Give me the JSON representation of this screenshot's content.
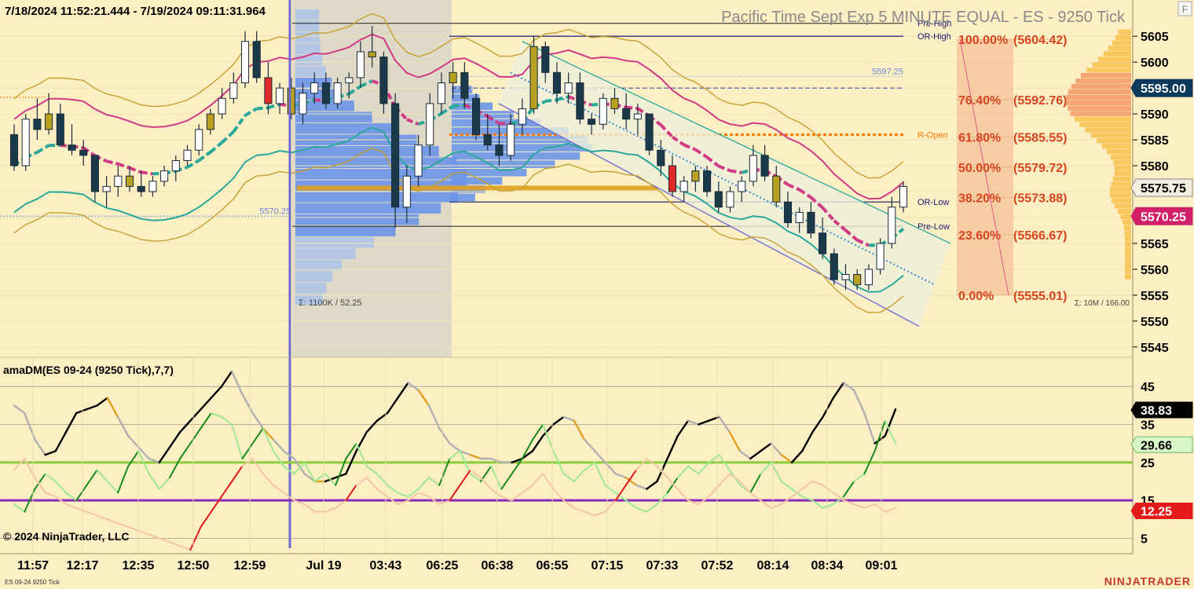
{
  "header": {
    "date_range": "7/18/2024 11:52:21.444 - 7/19/2024 09:11:31.964",
    "watermark": "Pacific Time Sept Exp 5 MINUTE EQUAL - ES - 9250 Tick",
    "corner_button": "F"
  },
  "footer": {
    "copyright": "© 2024 NinjaTrader, LLC",
    "instrument": "ES 09-24 9250 Tick",
    "brand": "NINJATRADER"
  },
  "colors": {
    "background": "#fcefc4",
    "bull_candle": "#ffffff",
    "bear_candle": "#1a3a4a",
    "neutral_candle": "#b8a020",
    "band_upper": "#d13a86",
    "band_mid": "#d13a86",
    "band_lower": "#2aa89a",
    "volume_profile": "#5b8ee6",
    "fib": "#d64520",
    "dm_black": "#000000",
    "dm_red": "#e21a1a",
    "dm_green": "#1a8a1a",
    "level_green": "#8ccc3a",
    "level_purple": "#8a2ab8"
  },
  "chart_data": [
    {
      "type": "candlestick",
      "title": "Pacific Time Sept Exp 5 MINUTE EQUAL - ES - 9250 Tick",
      "instrument": "ES 09-24 9250 Tick",
      "ylim": [
        5543,
        5612
      ],
      "y_ticks": [
        5545,
        5550,
        5555,
        5560,
        5565,
        5570,
        5575,
        5580,
        5585,
        5590,
        5595,
        5600,
        5605
      ],
      "x_ticks": [
        "11:57",
        "12:17",
        "12:35",
        "12:50",
        "12:59",
        "Jul 19",
        "03:43",
        "06:25",
        "06:38",
        "06:55",
        "07:15",
        "07:33",
        "07:52",
        "08:14",
        "08:34",
        "09:01"
      ],
      "price_labels": [
        {
          "value": 5595.0,
          "label": "5595.00",
          "style": "dark"
        },
        {
          "value": 5575.75,
          "label": "5575.75",
          "style": "light"
        },
        {
          "value": 5570.25,
          "label": "5570.25",
          "style": "pink"
        }
      ],
      "levels": [
        {
          "name": "Pre-High",
          "value": 5607.5
        },
        {
          "name": "OR-High",
          "value": 5605.0
        },
        {
          "name": "R-Open",
          "value": 5586.0
        },
        {
          "name": "OR-Low",
          "value": 5573.0
        },
        {
          "name": "Pre-Low",
          "value": 5568.3
        }
      ],
      "value_labels": [
        "5597.25",
        "5570.25"
      ],
      "fibonacci": [
        {
          "pct": "100.00%",
          "price": "(5604.42)",
          "value": 5604.42
        },
        {
          "pct": "76.40%",
          "price": "(5592.76)",
          "value": 5592.76
        },
        {
          "pct": "61.80%",
          "price": "(5585.55)",
          "value": 5585.55
        },
        {
          "pct": "50.00%",
          "price": "(5579.72)",
          "value": 5579.72
        },
        {
          "pct": "38.20%",
          "price": "(5573.88)",
          "value": 5573.88
        },
        {
          "pct": "23.60%",
          "price": "(5566.67)",
          "value": 5566.67
        },
        {
          "pct": "0.00%",
          "price": "(5555.01)",
          "value": 5555.01
        }
      ],
      "profile_stats": [
        "Σ: 1100K / 52.25",
        "Σ: 10M / 166.00"
      ],
      "candles": [
        [
          5586,
          5588,
          5579,
          5580
        ],
        [
          5580,
          5590,
          5579,
          5589
        ],
        [
          5589,
          5593,
          5585,
          5587
        ],
        [
          5587,
          5594,
          5586,
          5590
        ],
        [
          5590,
          5592,
          5584,
          5584
        ],
        [
          5584,
          5588,
          5582,
          5583
        ],
        [
          5583,
          5585,
          5580,
          5582
        ],
        [
          5582,
          5582,
          5573,
          5575
        ],
        [
          5575,
          5578,
          5572,
          5576
        ],
        [
          5576,
          5580,
          5574,
          5578
        ],
        [
          5578,
          5580,
          5575,
          5576
        ],
        [
          5576,
          5579,
          5574,
          5575
        ],
        [
          5575,
          5578,
          5574,
          5577
        ],
        [
          5577,
          5580,
          5576,
          5579
        ],
        [
          5579,
          5582,
          5577,
          5581
        ],
        [
          5581,
          5584,
          5580,
          5583
        ],
        [
          5583,
          5588,
          5582,
          5587
        ],
        [
          5587,
          5591,
          5586,
          5590
        ],
        [
          5590,
          5595,
          5589,
          5593
        ],
        [
          5593,
          5598,
          5592,
          5596
        ],
        [
          5596,
          5606,
          5595,
          5604
        ],
        [
          5604,
          5606,
          5596,
          5597
        ],
        [
          5597,
          5600,
          5590,
          5592
        ],
        [
          5592,
          5596,
          5590,
          5595
        ],
        [
          5595,
          5597,
          5589,
          5590
        ],
        [
          5590,
          5596,
          5588,
          5594
        ],
        [
          5594,
          5598,
          5592,
          5596
        ],
        [
          5596,
          5598,
          5591,
          5592
        ],
        [
          5592,
          5597,
          5591,
          5596
        ],
        [
          5596,
          5598,
          5593,
          5597
        ],
        [
          5597,
          5604,
          5595,
          5602
        ],
        [
          5602,
          5607,
          5599,
          5601
        ],
        [
          5601,
          5602,
          5590,
          5592
        ],
        [
          5592,
          5594,
          5568,
          5572
        ],
        [
          5572,
          5580,
          5569,
          5578
        ],
        [
          5578,
          5586,
          5576,
          5584
        ],
        [
          5584,
          5594,
          5582,
          5592
        ],
        [
          5592,
          5598,
          5590,
          5596
        ],
        [
          5596,
          5600,
          5593,
          5598
        ],
        [
          5598,
          5600,
          5591,
          5593
        ],
        [
          5593,
          5594,
          5585,
          5586
        ],
        [
          5586,
          5590,
          5583,
          5584
        ],
        [
          5584,
          5588,
          5580,
          5582
        ],
        [
          5582,
          5590,
          5581,
          5588
        ],
        [
          5588,
          5593,
          5586,
          5591
        ],
        [
          5591,
          5605,
          5590,
          5603
        ],
        [
          5603,
          5604,
          5596,
          5598
        ],
        [
          5598,
          5600,
          5592,
          5594
        ],
        [
          5594,
          5598,
          5592,
          5596
        ],
        [
          5596,
          5598,
          5588,
          5589
        ],
        [
          5589,
          5590,
          5586,
          5588
        ],
        [
          5588,
          5594,
          5587,
          5593
        ],
        [
          5593,
          5595,
          5590,
          5591
        ],
        [
          5591,
          5594,
          5587,
          5589
        ],
        [
          5589,
          5592,
          5586,
          5590
        ],
        [
          5590,
          5590,
          5582,
          5583
        ],
        [
          5583,
          5585,
          5578,
          5580
        ],
        [
          5580,
          5582,
          5574,
          5575
        ],
        [
          5575,
          5578,
          5573,
          5577
        ],
        [
          5577,
          5580,
          5575,
          5579
        ],
        [
          5579,
          5580,
          5574,
          5575
        ],
        [
          5575,
          5577,
          5571,
          5572
        ],
        [
          5572,
          5576,
          5571,
          5575
        ],
        [
          5575,
          5578,
          5573,
          5577
        ],
        [
          5577,
          5584,
          5576,
          5582
        ],
        [
          5582,
          5584,
          5577,
          5578
        ],
        [
          5578,
          5580,
          5572,
          5573
        ],
        [
          5573,
          5575,
          5568,
          5569
        ],
        [
          5569,
          5572,
          5567,
          5571
        ],
        [
          5571,
          5573,
          5566,
          5567
        ],
        [
          5567,
          5570,
          5562,
          5563
        ],
        [
          5563,
          5564,
          5557,
          5558
        ],
        [
          5558,
          5561,
          5556,
          5559
        ],
        [
          5559,
          5560,
          5556,
          5557
        ],
        [
          5557,
          5561,
          5556,
          5560
        ],
        [
          5560,
          5566,
          5559,
          5565
        ],
        [
          5565,
          5574,
          5564,
          5572
        ],
        [
          5572,
          5577,
          5571,
          5576
        ]
      ]
    },
    {
      "type": "line",
      "title": "amaDM(ES 09-24 (9250 Tick),7,7)",
      "ylim": [
        2,
        50
      ],
      "y_ticks": [
        5,
        15,
        25,
        35,
        45
      ],
      "reference_lines": [
        25,
        15
      ],
      "last_values": [
        {
          "value": 38.83,
          "label": "38.83",
          "style": "black"
        },
        {
          "value": 29.66,
          "label": "29.66",
          "style": "green"
        },
        {
          "value": 12.25,
          "label": "12.25",
          "style": "red"
        }
      ],
      "series": [
        {
          "name": "ADX",
          "values": [
            40,
            38,
            31,
            27,
            28,
            33,
            38,
            39,
            40,
            42,
            37,
            32,
            29,
            26,
            25,
            29,
            33,
            36,
            39,
            42,
            45,
            49,
            43,
            38,
            34,
            31,
            28,
            26,
            22,
            20,
            20,
            21,
            22,
            28,
            33,
            36,
            38,
            42,
            46,
            44,
            40,
            34,
            30,
            28,
            27,
            26,
            26,
            25,
            25,
            26,
            28,
            32,
            35,
            37,
            36,
            31,
            28,
            25,
            22,
            21,
            19,
            18,
            20,
            26,
            32,
            36,
            35,
            36,
            37,
            33,
            28,
            26,
            28,
            30,
            27,
            25,
            28,
            33,
            37,
            42,
            46,
            44,
            38,
            30,
            32,
            39
          ]
        },
        {
          "name": "DI+",
          "values": [
            14,
            12,
            18,
            22,
            20,
            17,
            15,
            19,
            23,
            20,
            17,
            24,
            28,
            22,
            18,
            21,
            26,
            30,
            34,
            38,
            37,
            35,
            26,
            30,
            34,
            28,
            24,
            22,
            25,
            20,
            22,
            19,
            26,
            30,
            24,
            22,
            19,
            17,
            16,
            18,
            21,
            19,
            26,
            28,
            22,
            20,
            24,
            18,
            22,
            26,
            31,
            35,
            28,
            22,
            20,
            23,
            25,
            19,
            17,
            15,
            13,
            12,
            14,
            17,
            21,
            24,
            22,
            25,
            27,
            23,
            19,
            17,
            22,
            25,
            20,
            18,
            16,
            15,
            13,
            14,
            16,
            20,
            22,
            28,
            36,
            30
          ]
        },
        {
          "name": "DI-",
          "values": [
            23,
            26,
            21,
            17,
            16,
            14,
            13,
            12,
            11,
            10,
            9,
            8,
            7,
            6,
            5,
            4,
            3,
            2,
            8,
            12,
            16,
            20,
            24,
            26,
            22,
            19,
            17,
            15,
            14,
            12,
            12,
            13,
            15,
            19,
            21,
            18,
            16,
            14,
            15,
            17,
            16,
            14,
            15,
            19,
            23,
            21,
            18,
            16,
            15,
            17,
            19,
            22,
            18,
            15,
            13,
            12,
            11,
            12,
            15,
            19,
            23,
            26,
            24,
            21,
            18,
            15,
            14,
            16,
            19,
            22,
            20,
            17,
            15,
            13,
            14,
            16,
            18,
            20,
            19,
            17,
            15,
            14,
            13,
            14,
            12,
            13
          ]
        }
      ]
    }
  ]
}
